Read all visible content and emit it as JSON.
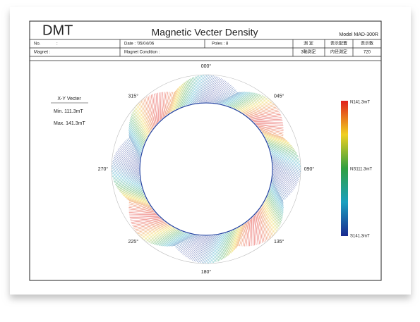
{
  "header": {
    "brand": "DMT",
    "title": "Magnetic Vecter Density",
    "model": "Model MAD-300R"
  },
  "table": {
    "rows": [
      [
        "No.",
        ":",
        "Date  : '05/04/06",
        "Poles : 8",
        "測 定",
        "表示配置",
        "表示数"
      ],
      [
        "Magnet :",
        "Magnet Condition :",
        "3軸測定",
        "内径測定",
        "720"
      ]
    ]
  },
  "legend": {
    "title": "X-Y Vecter",
    "min": "Min. 111.3mT",
    "max": "Max. 141.3mT"
  },
  "angles": [
    "000°",
    "045°",
    "090°",
    "135°",
    "180°",
    "225°",
    "270°",
    "315°"
  ],
  "color_scale": [
    "N141.3mT",
    "NS111.3mT",
    "S141.3mT"
  ]
}
